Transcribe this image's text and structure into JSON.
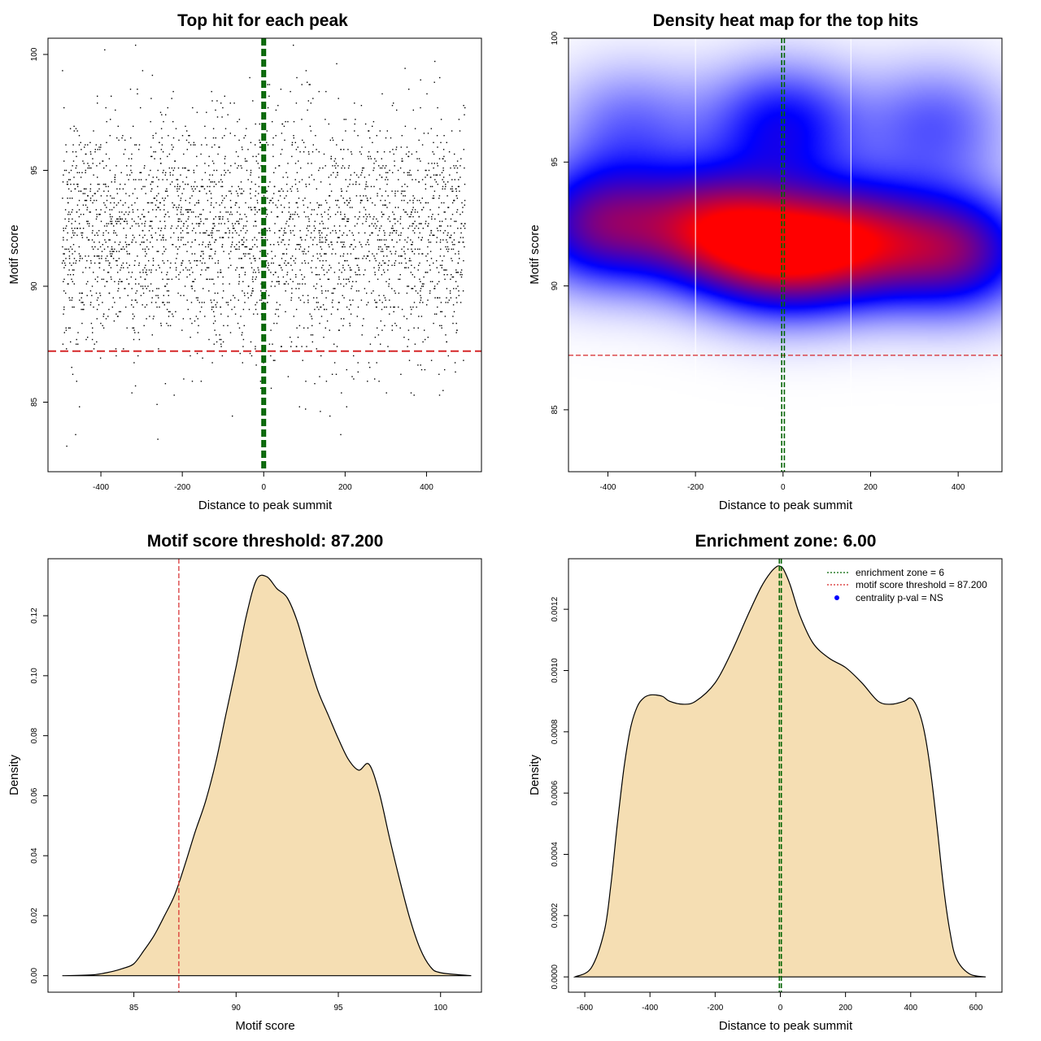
{
  "chart_data": [
    {
      "type": "scatter",
      "title": "Top hit for each peak",
      "xlabel": "Distance to peak summit",
      "ylabel": "Motif score",
      "xlim": [
        -530,
        535
      ],
      "ylim": [
        82,
        100.7
      ],
      "xticks": [
        -400,
        -200,
        0,
        200,
        400
      ],
      "yticks": [
        85,
        90,
        95,
        100
      ],
      "threshold_y": 87.2,
      "zone_x": [
        -3,
        3
      ],
      "point_count": 3200,
      "score_mean": 92.2,
      "score_sd": 2.6,
      "x_range": [
        -495,
        495
      ],
      "colors": {
        "points": "#000000",
        "threshold": "#d62728",
        "zone": "#006400"
      }
    },
    {
      "type": "heatmap",
      "title": "Density heat map for the top hits",
      "xlabel": "Distance to peak summit",
      "ylabel": "Motif score",
      "xlim": [
        -490,
        500
      ],
      "ylim": [
        82.5,
        100
      ],
      "xticks": [
        -400,
        -200,
        0,
        200,
        400
      ],
      "yticks": [
        85,
        90,
        95,
        100
      ],
      "threshold_y": 87.2,
      "zone_x": [
        -3,
        3
      ],
      "separators_x": [
        -200,
        155
      ],
      "density_peaks": [
        {
          "x": -420,
          "y": 92.5,
          "w": 0.8
        },
        {
          "x": -170,
          "y": 92.3,
          "w": 0.9
        },
        {
          "x": 0,
          "y": 91.4,
          "w": 1.0
        },
        {
          "x": 0,
          "y": 96.5,
          "w": 0.55
        },
        {
          "x": 180,
          "y": 91.8,
          "w": 0.85
        },
        {
          "x": 400,
          "y": 91.4,
          "w": 0.8
        },
        {
          "x": 350,
          "y": 96.5,
          "w": 0.35
        },
        {
          "x": -350,
          "y": 96.5,
          "w": 0.3
        }
      ],
      "colors": {
        "low": "#ffffff",
        "mid": "#0000ff",
        "high": "#ff0000",
        "threshold": "#d62728",
        "zone": "#006400"
      }
    },
    {
      "type": "area",
      "title": "Motif score threshold: 87.200",
      "xlabel": "Motif score",
      "ylabel": "Density",
      "xlim": [
        80.8,
        102
      ],
      "ylim": [
        -0.0055,
        0.139
      ],
      "xticks": [
        85,
        90,
        95,
        100
      ],
      "yticks": [
        0.0,
        0.02,
        0.04,
        0.06,
        0.08,
        0.1,
        0.12
      ],
      "ytick_labels": [
        "0.00",
        "0.02",
        "0.04",
        "0.06",
        "0.08",
        "0.10",
        "0.12"
      ],
      "threshold_x": 87.2,
      "x": [
        81.5,
        83.0,
        84.0,
        84.5,
        85.0,
        85.5,
        86.0,
        86.5,
        87.0,
        87.5,
        88.0,
        88.5,
        89.0,
        89.5,
        90.0,
        90.5,
        91.0,
        91.5,
        92.0,
        92.5,
        93.0,
        93.5,
        94.0,
        94.5,
        95.0,
        95.5,
        96.0,
        96.5,
        97.0,
        97.5,
        98.0,
        98.5,
        99.0,
        99.5,
        100.0,
        101.5
      ],
      "y": [
        0.0,
        0.0003,
        0.0015,
        0.0025,
        0.004,
        0.0085,
        0.0135,
        0.02,
        0.027,
        0.037,
        0.048,
        0.058,
        0.071,
        0.087,
        0.103,
        0.12,
        0.132,
        0.133,
        0.129,
        0.126,
        0.118,
        0.106,
        0.095,
        0.087,
        0.079,
        0.072,
        0.0685,
        0.0705,
        0.061,
        0.046,
        0.032,
        0.019,
        0.009,
        0.003,
        0.001,
        0.0
      ],
      "colors": {
        "fill": "#f5deb3",
        "line": "#000000",
        "threshold": "#d62728"
      }
    },
    {
      "type": "area",
      "title": "Enrichment zone: 6.00",
      "xlabel": "Distance to peak summit",
      "ylabel": "Density",
      "xlim": [
        -650,
        680
      ],
      "ylim": [
        -5e-05,
        0.001365
      ],
      "xticks": [
        -600,
        -400,
        -200,
        0,
        200,
        400,
        600
      ],
      "yticks": [
        0.0,
        0.0002,
        0.0004,
        0.0006,
        0.0008,
        0.001,
        0.0012
      ],
      "ytick_labels": [
        "0.0000",
        "0.0002",
        "0.0004",
        "0.0006",
        "0.0008",
        "0.0010",
        "0.0012"
      ],
      "zone_x": [
        -3,
        3
      ],
      "x": [
        -630,
        -580,
        -540,
        -520,
        -500,
        -480,
        -460,
        -440,
        -420,
        -400,
        -380,
        -360,
        -340,
        -300,
        -260,
        -200,
        -150,
        -100,
        -60,
        -30,
        -10,
        0,
        10,
        30,
        60,
        100,
        150,
        200,
        250,
        300,
        340,
        380,
        400,
        420,
        440,
        460,
        480,
        500,
        520,
        540,
        580,
        630
      ],
      "y": [
        0.0,
        3e-05,
        0.00015,
        0.0003,
        0.0005,
        0.00068,
        0.00081,
        0.00088,
        0.00091,
        0.00092,
        0.00092,
        0.000915,
        0.0009,
        0.00089,
        0.0009,
        0.00096,
        0.00106,
        0.00118,
        0.00127,
        0.00132,
        0.00134,
        0.00134,
        0.00133,
        0.00128,
        0.00118,
        0.00109,
        0.00104,
        0.00101,
        0.00096,
        0.0009,
        0.00089,
        0.0009,
        0.00091,
        0.00088,
        0.00081,
        0.00068,
        0.0005,
        0.0003,
        0.00015,
        6e-05,
        1e-05,
        0.0
      ],
      "legend": [
        {
          "label": "enrichment zone = 6",
          "symbol": "dotted",
          "color": "#006400"
        },
        {
          "label": "motif score threshold = 87.200",
          "symbol": "dotted",
          "color": "#d62728"
        },
        {
          "label": "centrality p-val = NS",
          "symbol": "dot",
          "color": "#0000ff"
        }
      ],
      "legend_position": "top-right",
      "colors": {
        "fill": "#f5deb3",
        "line": "#000000",
        "zone": "#006400"
      }
    }
  ]
}
